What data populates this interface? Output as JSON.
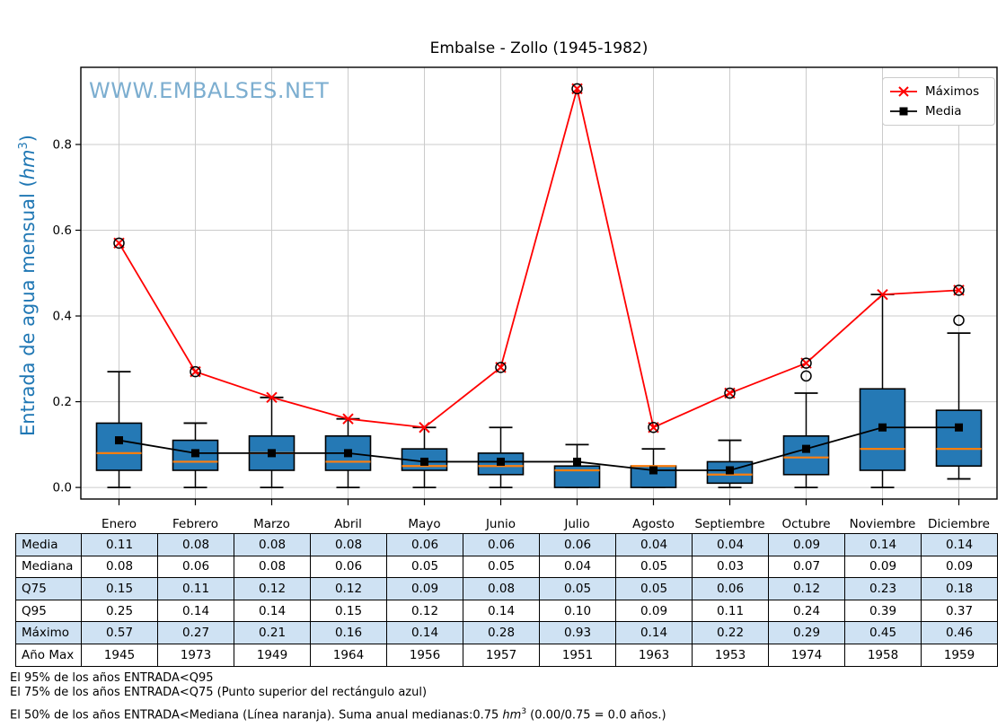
{
  "title": "Embalse - Zollo (1945-1982)",
  "watermark": "WWW.EMBALSES.NET",
  "axis": {
    "ylabel_prefix": "Entrada de agua mensual (",
    "ylabel_unit": "hm",
    "ylabel_exponent": "3",
    "ylabel_suffix": ")",
    "ytick_labels": [
      "0.0",
      "0.2",
      "0.4",
      "0.6",
      "0.8"
    ]
  },
  "legend": {
    "maximos_label": "Máximos",
    "media_label": "Media"
  },
  "colors": {
    "box_fill": "#2579b5",
    "box_edge": "#000000",
    "median_line": "#ff7f0e",
    "maximos_line": "#ff0000",
    "media_line": "#000000",
    "flier_edge": "#000000",
    "grid": "#cbcbcb",
    "spine": "#000000",
    "ylabel_color": "#1f77b4",
    "watermark_color": "#66a0c8",
    "table_stripe": "#cfe2f3"
  },
  "chart_data": {
    "type": "boxplot-with-lines",
    "categories": [
      "Enero",
      "Febrero",
      "Marzo",
      "Abril",
      "Mayo",
      "Junio",
      "Julio",
      "Agosto",
      "Septiembre",
      "Octubre",
      "Noviembre",
      "Diciembre"
    ],
    "ylim": [
      -0.027,
      0.98
    ],
    "yticks": [
      0.0,
      0.2,
      0.4,
      0.6,
      0.8
    ],
    "grid": true,
    "legend_position": "upper right",
    "series": [
      {
        "name": "Máximos",
        "marker": "x",
        "values": [
          0.57,
          0.27,
          0.21,
          0.16,
          0.14,
          0.28,
          0.93,
          0.14,
          0.22,
          0.29,
          0.45,
          0.46
        ]
      },
      {
        "name": "Media",
        "marker": "square",
        "values": [
          0.11,
          0.08,
          0.08,
          0.08,
          0.06,
          0.06,
          0.06,
          0.04,
          0.04,
          0.09,
          0.14,
          0.14
        ]
      }
    ],
    "boxplots": [
      {
        "month": "Enero",
        "q1": 0.04,
        "median": 0.08,
        "q3": 0.15,
        "whislo": 0.0,
        "whishi": 0.27,
        "fliers": [
          0.57
        ]
      },
      {
        "month": "Febrero",
        "q1": 0.04,
        "median": 0.06,
        "q3": 0.11,
        "whislo": 0.0,
        "whishi": 0.15,
        "fliers": [
          0.27
        ]
      },
      {
        "month": "Marzo",
        "q1": 0.04,
        "median": 0.08,
        "q3": 0.12,
        "whislo": 0.0,
        "whishi": 0.21,
        "fliers": []
      },
      {
        "month": "Abril",
        "q1": 0.04,
        "median": 0.06,
        "q3": 0.12,
        "whislo": 0.0,
        "whishi": 0.16,
        "fliers": []
      },
      {
        "month": "Mayo",
        "q1": 0.04,
        "median": 0.05,
        "q3": 0.09,
        "whislo": 0.0,
        "whishi": 0.14,
        "fliers": []
      },
      {
        "month": "Junio",
        "q1": 0.03,
        "median": 0.05,
        "q3": 0.08,
        "whislo": 0.0,
        "whishi": 0.14,
        "fliers": [
          0.28
        ]
      },
      {
        "month": "Julio",
        "q1": 0.0,
        "median": 0.04,
        "q3": 0.05,
        "whislo": 0.0,
        "whishi": 0.1,
        "fliers": [
          0.93
        ]
      },
      {
        "month": "Agosto",
        "q1": 0.0,
        "median": 0.05,
        "q3": 0.05,
        "whislo": 0.0,
        "whishi": 0.09,
        "fliers": [
          0.14
        ]
      },
      {
        "month": "Septiembre",
        "q1": 0.01,
        "median": 0.03,
        "q3": 0.06,
        "whislo": 0.0,
        "whishi": 0.11,
        "fliers": [
          0.22
        ]
      },
      {
        "month": "Octubre",
        "q1": 0.03,
        "median": 0.07,
        "q3": 0.12,
        "whislo": 0.0,
        "whishi": 0.22,
        "fliers": [
          0.26,
          0.29
        ]
      },
      {
        "month": "Noviembre",
        "q1": 0.04,
        "median": 0.09,
        "q3": 0.23,
        "whislo": 0.0,
        "whishi": 0.45,
        "fliers": []
      },
      {
        "month": "Diciembre",
        "q1": 0.05,
        "median": 0.09,
        "q3": 0.18,
        "whislo": 0.02,
        "whishi": 0.36,
        "fliers": [
          0.39,
          0.46
        ]
      }
    ]
  },
  "table": {
    "row_labels": [
      "Media",
      "Mediana",
      "Q75",
      "Q95",
      "Máximo",
      "Año Max"
    ],
    "columns": [
      "Enero",
      "Febrero",
      "Marzo",
      "Abril",
      "Mayo",
      "Junio",
      "Julio",
      "Agosto",
      "Septiembre",
      "Octubre",
      "Noviembre",
      "Diciembre"
    ],
    "rows": [
      [
        "0.11",
        "0.08",
        "0.08",
        "0.08",
        "0.06",
        "0.06",
        "0.06",
        "0.04",
        "0.04",
        "0.09",
        "0.14",
        "0.14"
      ],
      [
        "0.08",
        "0.06",
        "0.08",
        "0.06",
        "0.05",
        "0.05",
        "0.04",
        "0.05",
        "0.03",
        "0.07",
        "0.09",
        "0.09"
      ],
      [
        "0.15",
        "0.11",
        "0.12",
        "0.12",
        "0.09",
        "0.08",
        "0.05",
        "0.05",
        "0.06",
        "0.12",
        "0.23",
        "0.18"
      ],
      [
        "0.25",
        "0.14",
        "0.14",
        "0.15",
        "0.12",
        "0.14",
        "0.10",
        "0.09",
        "0.11",
        "0.24",
        "0.39",
        "0.37"
      ],
      [
        "0.57",
        "0.27",
        "0.21",
        "0.16",
        "0.14",
        "0.28",
        "0.93",
        "0.14",
        "0.22",
        "0.29",
        "0.45",
        "0.46"
      ],
      [
        "1945",
        "1973",
        "1949",
        "1964",
        "1956",
        "1957",
        "1951",
        "1963",
        "1953",
        "1974",
        "1958",
        "1959"
      ]
    ]
  },
  "footnotes": {
    "line1": "El 95% de los años ENTRADA<Q95",
    "line2": "El 75% de los años ENTRADA<Q75 (Punto superior del rectángulo azul)",
    "line3_prefix": "El 50% de los años ENTRADA<Mediana (Línea naranja). Suma anual medianas:0.75 ",
    "line3_unit": "hm",
    "line3_exponent": "3",
    "line3_suffix": " (0.00/0.75 = 0.0 años.)"
  }
}
